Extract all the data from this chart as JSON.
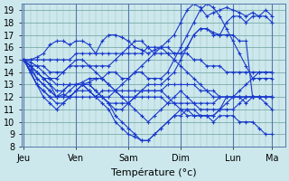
{
  "title": "Température (°c)",
  "bg_color": "#cce8ec",
  "plot_bg_color": "#cce8ec",
  "line_color": "#1a3acc",
  "marker": "+",
  "markersize": 3,
  "linewidth": 0.8,
  "ylim": [
    8,
    19.5
  ],
  "yticks": [
    8,
    9,
    10,
    11,
    12,
    13,
    14,
    15,
    16,
    17,
    18,
    19
  ],
  "xtick_labels": [
    "Jeu",
    "Ven",
    "Sam",
    "Dim",
    "Lun",
    "Ma"
  ],
  "xtick_positions": [
    0,
    8,
    16,
    24,
    32,
    38
  ],
  "xlim": [
    -0.3,
    40
  ],
  "grid_minor_color": "#b0cdd0",
  "grid_major_color": "#7aaaaa",
  "series": [
    [
      15.0,
      15.0,
      15.2,
      15.5,
      16.2,
      16.5,
      16.5,
      16.2,
      16.5,
      16.5,
      16.2,
      15.5,
      16.5,
      17.0,
      17.0,
      16.8,
      16.5,
      16.0,
      15.8,
      15.5,
      15.8,
      16.0,
      16.5,
      17.0,
      18.0,
      19.0,
      19.5,
      19.2,
      18.5,
      18.8,
      19.0,
      19.2,
      19.0,
      18.8,
      18.5,
      18.8,
      18.5,
      19.0,
      18.5
    ],
    [
      15.0,
      14.8,
      14.5,
      14.0,
      13.5,
      13.0,
      13.0,
      13.0,
      13.0,
      13.2,
      13.5,
      13.5,
      13.5,
      14.0,
      14.0,
      13.5,
      13.5,
      14.0,
      14.5,
      15.0,
      15.5,
      16.0,
      16.0,
      15.5,
      15.5,
      16.0,
      17.0,
      17.5,
      17.5,
      17.2,
      17.0,
      18.0,
      18.5,
      18.5,
      18.0,
      18.5,
      18.5,
      18.5,
      18.0
    ],
    [
      15.0,
      14.5,
      14.0,
      13.5,
      13.0,
      12.0,
      12.2,
      12.0,
      12.5,
      13.0,
      13.2,
      13.5,
      13.5,
      13.0,
      12.5,
      12.0,
      11.5,
      11.0,
      10.5,
      10.0,
      10.5,
      11.0,
      11.5,
      12.0,
      12.5,
      12.0,
      11.5,
      11.0,
      11.0,
      11.0,
      11.0,
      12.0,
      12.0,
      12.0,
      11.5,
      12.0,
      12.0,
      12.0,
      12.0
    ],
    [
      15.0,
      14.5,
      13.5,
      13.0,
      12.5,
      12.0,
      12.0,
      12.5,
      13.0,
      13.0,
      13.0,
      12.5,
      12.0,
      11.5,
      10.5,
      10.0,
      9.5,
      9.0,
      8.5,
      8.5,
      9.0,
      9.5,
      10.0,
      10.5,
      11.0,
      11.0,
      11.0,
      10.5,
      10.5,
      10.5,
      11.0,
      11.0,
      11.0,
      11.5,
      12.0,
      12.0,
      12.0,
      11.5,
      11.0
    ],
    [
      15.0,
      14.2,
      13.5,
      13.0,
      12.5,
      12.0,
      12.0,
      12.0,
      12.5,
      12.5,
      12.5,
      12.0,
      11.5,
      11.0,
      10.0,
      9.5,
      9.0,
      8.8,
      8.5,
      8.5,
      9.0,
      9.5,
      10.0,
      10.5,
      10.5,
      11.0,
      10.5,
      10.5,
      10.5,
      10.0,
      10.5,
      10.5,
      10.5,
      10.0,
      10.0,
      10.0,
      9.5,
      9.0,
      9.0
    ],
    [
      15.0,
      14.5,
      14.0,
      13.5,
      13.0,
      12.5,
      12.5,
      13.0,
      13.0,
      13.0,
      12.5,
      12.0,
      12.0,
      11.5,
      11.5,
      11.5,
      11.5,
      12.0,
      12.0,
      12.0,
      12.0,
      12.0,
      11.5,
      11.5,
      11.5,
      11.5,
      11.5,
      11.5,
      11.5,
      11.5,
      12.0,
      12.0,
      12.0,
      12.0,
      12.0,
      12.0,
      12.0,
      12.0,
      12.0
    ],
    [
      15.0,
      14.5,
      14.5,
      14.5,
      14.0,
      14.0,
      14.0,
      14.5,
      14.5,
      14.5,
      14.5,
      14.0,
      13.5,
      13.0,
      12.5,
      12.5,
      12.5,
      12.5,
      12.5,
      12.5,
      12.5,
      12.5,
      13.0,
      13.0,
      13.0,
      13.0,
      13.0,
      12.5,
      12.5,
      12.0,
      12.0,
      12.0,
      12.0,
      12.5,
      13.0,
      13.5,
      14.0,
      14.0,
      14.0
    ],
    [
      15.0,
      15.0,
      15.0,
      15.0,
      15.0,
      15.0,
      15.0,
      15.0,
      15.5,
      15.5,
      15.5,
      15.5,
      15.5,
      15.5,
      15.5,
      15.5,
      15.5,
      15.5,
      15.5,
      16.0,
      16.0,
      16.0,
      15.5,
      15.0,
      14.5,
      14.0,
      13.5,
      13.0,
      12.5,
      12.5,
      12.0,
      12.0,
      12.0,
      12.0,
      12.0,
      12.0,
      12.0,
      12.0,
      12.0
    ],
    [
      15.0,
      14.0,
      13.0,
      12.5,
      12.0,
      11.5,
      11.5,
      12.0,
      12.0,
      12.0,
      12.0,
      12.0,
      12.5,
      12.5,
      12.5,
      12.0,
      12.0,
      12.0,
      12.5,
      12.5,
      12.5,
      12.5,
      12.0,
      11.5,
      11.0,
      10.5,
      10.5,
      10.5,
      10.5,
      10.5,
      11.0,
      11.5,
      12.0,
      12.0,
      12.0,
      12.0,
      12.0,
      12.0,
      12.0
    ],
    [
      15.0,
      14.5,
      14.0,
      13.5,
      13.5,
      13.5,
      14.0,
      14.5,
      15.0,
      15.0,
      14.5,
      14.5,
      14.5,
      14.5,
      15.0,
      15.5,
      16.0,
      16.5,
      16.5,
      16.0,
      15.5,
      15.5,
      15.5,
      15.5,
      15.5,
      15.5,
      15.0,
      15.0,
      14.5,
      14.5,
      14.5,
      14.0,
      14.0,
      14.0,
      14.0,
      14.0,
      14.0,
      14.0,
      14.0
    ],
    [
      15.0,
      14.0,
      13.0,
      12.0,
      11.5,
      11.0,
      11.5,
      12.0,
      12.5,
      13.0,
      13.0,
      12.5,
      12.0,
      11.5,
      11.0,
      11.0,
      11.5,
      12.0,
      12.5,
      13.0,
      13.0,
      13.0,
      13.5,
      14.0,
      15.0,
      16.0,
      17.0,
      17.5,
      17.5,
      17.0,
      17.0,
      17.0,
      17.0,
      16.5,
      16.5,
      12.0,
      12.0,
      12.0,
      12.0
    ],
    [
      15.0,
      14.0,
      13.0,
      12.5,
      12.0,
      12.0,
      12.5,
      13.0,
      13.0,
      13.0,
      12.5,
      12.0,
      12.0,
      12.0,
      12.5,
      13.0,
      13.5,
      14.0,
      14.0,
      13.5,
      13.5,
      13.5,
      14.0,
      15.0,
      16.0,
      17.0,
      18.0,
      19.0,
      19.5,
      19.2,
      18.5,
      17.5,
      16.5,
      15.5,
      14.5,
      13.5,
      13.5,
      13.5,
      13.5
    ]
  ],
  "day_boundaries": [
    0,
    8,
    16,
    24,
    32,
    38
  ],
  "day_boundary_color": "#5577aa",
  "grid_color": "#99bbbb"
}
